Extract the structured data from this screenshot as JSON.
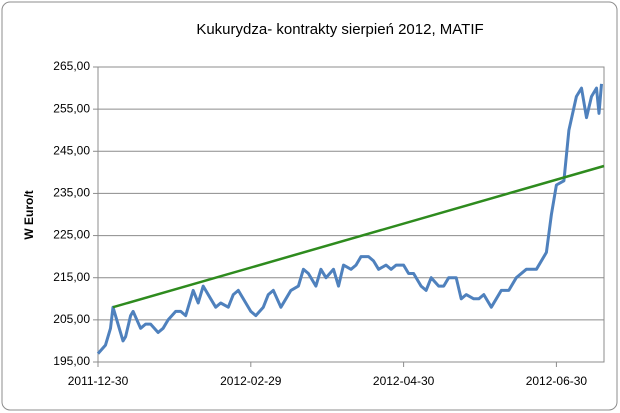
{
  "chart_data": {
    "type": "line",
    "title": "Kukurydza- kontrakty sierpień 2012, MATIF",
    "ylabel": "W Euro/t",
    "x": [
      "2011-12-30",
      "2012-01-02",
      "2012-01-04",
      "2012-01-05",
      "2012-01-09",
      "2012-01-10",
      "2012-01-12",
      "2012-01-13",
      "2012-01-16",
      "2012-01-18",
      "2012-01-20",
      "2012-01-23",
      "2012-01-25",
      "2012-01-27",
      "2012-01-30",
      "2012-02-01",
      "2012-02-03",
      "2012-02-06",
      "2012-02-08",
      "2012-02-10",
      "2012-02-13",
      "2012-02-15",
      "2012-02-17",
      "2012-02-20",
      "2012-02-22",
      "2012-02-24",
      "2012-02-27",
      "2012-02-29",
      "2012-03-02",
      "2012-03-05",
      "2012-03-07",
      "2012-03-09",
      "2012-03-12",
      "2012-03-14",
      "2012-03-16",
      "2012-03-19",
      "2012-03-21",
      "2012-03-23",
      "2012-03-26",
      "2012-03-28",
      "2012-03-30",
      "2012-04-02",
      "2012-04-04",
      "2012-04-06",
      "2012-04-09",
      "2012-04-11",
      "2012-04-13",
      "2012-04-16",
      "2012-04-18",
      "2012-04-20",
      "2012-04-23",
      "2012-04-25",
      "2012-04-27",
      "2012-04-30",
      "2012-05-02",
      "2012-05-04",
      "2012-05-07",
      "2012-05-09",
      "2012-05-11",
      "2012-05-14",
      "2012-05-16",
      "2012-05-18",
      "2012-05-21",
      "2012-05-23",
      "2012-05-25",
      "2012-05-28",
      "2012-05-30",
      "2012-06-01",
      "2012-06-04",
      "2012-06-06",
      "2012-06-08",
      "2012-06-11",
      "2012-06-14",
      "2012-06-18",
      "2012-06-22",
      "2012-06-26",
      "2012-06-28",
      "2012-06-30",
      "2012-07-03",
      "2012-07-05",
      "2012-07-08",
      "2012-07-10",
      "2012-07-12",
      "2012-07-14",
      "2012-07-16",
      "2012-07-17",
      "2012-07-18"
    ],
    "series": [
      {
        "color": "#4f81bd",
        "values": [
          197,
          199,
          203,
          208,
          200,
          201,
          206,
          207,
          203,
          204,
          204,
          202,
          203,
          205,
          207,
          207,
          206,
          212,
          209,
          213,
          210,
          208,
          209,
          208,
          211,
          212,
          209,
          207,
          206,
          208,
          211,
          212,
          208,
          210,
          212,
          213,
          217,
          216,
          213,
          217,
          215,
          217,
          213,
          218,
          217,
          218,
          220,
          220,
          219,
          217,
          218,
          217,
          218,
          218,
          216,
          216,
          213,
          212,
          215,
          213,
          213,
          215,
          215,
          210,
          211,
          210,
          210,
          211,
          208,
          210,
          212,
          212,
          215,
          217,
          217,
          221,
          230,
          237,
          238,
          250,
          258,
          260,
          253,
          258,
          260,
          254,
          261
        ]
      }
    ],
    "trendline": {
      "color": "#2e8b1e",
      "x": [
        "2012-01-05",
        "2012-07-19"
      ],
      "values": [
        208,
        241.5
      ]
    },
    "xlim": [
      "2011-12-30",
      "2012-07-19"
    ],
    "xticks": [
      "2011-12-30",
      "2012-02-29",
      "2012-04-30",
      "2012-06-30"
    ],
    "ylim": [
      195,
      265
    ],
    "yticks": [
      {
        "value": 195,
        "label": "195,00"
      },
      {
        "value": 205,
        "label": "205,00"
      },
      {
        "value": 215,
        "label": "215,00"
      },
      {
        "value": 225,
        "label": "225,00"
      },
      {
        "value": 235,
        "label": "235,00"
      },
      {
        "value": 245,
        "label": "245,00"
      },
      {
        "value": 255,
        "label": "255,00"
      },
      {
        "value": 265,
        "label": "265,00"
      }
    ],
    "grid": true
  }
}
